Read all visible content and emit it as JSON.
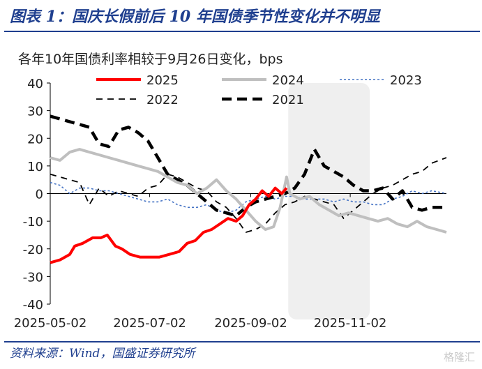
{
  "header": {
    "title": "图表 1：国庆长假前后 10 年国债季节性变化并不明显"
  },
  "footer": {
    "source": "资料来源：Wind，国盛证券研究所",
    "watermark": "格隆汇"
  },
  "colors": {
    "title": "#1f3f8f",
    "2025": "#ff0000",
    "2024": "#bfbfbf",
    "2023": "#4472c4",
    "2022": "#000000",
    "2021": "#000000",
    "highlight": "#efefef"
  },
  "chart_data": {
    "type": "line",
    "title": "各年10年国债利率相较于9月26日变化，bps",
    "ylim": [
      -40,
      40
    ],
    "yticks": [
      "40",
      "30",
      "20",
      "10",
      "0",
      "-10",
      "-20",
      "-30",
      "-40"
    ],
    "xticks": [
      "2025-05-02",
      "2025-07-02",
      "2025-09-02",
      "2025-11-02"
    ],
    "xlim": [
      "2025-05-02",
      "2025-12-31"
    ],
    "shaded_range": [
      "2025-09-25",
      "2025-11-14"
    ],
    "legend_position": "top",
    "series": [
      {
        "name": "2025",
        "style": "solid-thick",
        "points": [
          [
            "2025-05-02",
            -25
          ],
          [
            "2025-05-08",
            -24
          ],
          [
            "2025-05-14",
            -22
          ],
          [
            "2025-05-17",
            -19
          ],
          [
            "2025-05-22",
            -18
          ],
          [
            "2025-05-28",
            -16
          ],
          [
            "2025-06-02",
            -16
          ],
          [
            "2025-06-06",
            -15
          ],
          [
            "2025-06-11",
            -19
          ],
          [
            "2025-06-15",
            -20
          ],
          [
            "2025-06-20",
            -22
          ],
          [
            "2025-06-26",
            -23
          ],
          [
            "2025-07-02",
            -23
          ],
          [
            "2025-07-08",
            -23
          ],
          [
            "2025-07-14",
            -22
          ],
          [
            "2025-07-20",
            -21
          ],
          [
            "2025-07-25",
            -18
          ],
          [
            "2025-07-30",
            -17
          ],
          [
            "2025-08-04",
            -14
          ],
          [
            "2025-08-09",
            -13
          ],
          [
            "2025-08-14",
            -11
          ],
          [
            "2025-08-19",
            -9
          ],
          [
            "2025-08-24",
            -10
          ],
          [
            "2025-08-28",
            -8
          ],
          [
            "2025-09-01",
            -4
          ],
          [
            "2025-09-05",
            -2
          ],
          [
            "2025-09-09",
            1
          ],
          [
            "2025-09-13",
            -1
          ],
          [
            "2025-09-17",
            2
          ],
          [
            "2025-09-21",
            0
          ],
          [
            "2025-09-24",
            2
          ]
        ]
      },
      {
        "name": "2024",
        "style": "solid-thick",
        "points": [
          [
            "2025-05-02",
            13
          ],
          [
            "2025-05-08",
            12
          ],
          [
            "2025-05-14",
            15
          ],
          [
            "2025-05-20",
            16
          ],
          [
            "2025-05-26",
            15
          ],
          [
            "2025-06-01",
            14
          ],
          [
            "2025-06-07",
            13
          ],
          [
            "2025-06-13",
            12
          ],
          [
            "2025-06-19",
            11
          ],
          [
            "2025-06-25",
            10
          ],
          [
            "2025-07-01",
            9
          ],
          [
            "2025-07-07",
            8
          ],
          [
            "2025-07-13",
            6
          ],
          [
            "2025-07-19",
            4
          ],
          [
            "2025-07-25",
            3
          ],
          [
            "2025-07-31",
            0
          ],
          [
            "2025-08-06",
            2
          ],
          [
            "2025-08-12",
            5
          ],
          [
            "2025-08-18",
            1
          ],
          [
            "2025-08-24",
            -2
          ],
          [
            "2025-08-30",
            -6
          ],
          [
            "2025-09-05",
            -10
          ],
          [
            "2025-09-11",
            -13
          ],
          [
            "2025-09-16",
            -12
          ],
          [
            "2025-09-20",
            -5
          ],
          [
            "2025-09-24",
            6
          ],
          [
            "2025-09-26",
            0
          ],
          [
            "2025-10-02",
            -2
          ],
          [
            "2025-10-08",
            -1
          ],
          [
            "2025-10-14",
            -4
          ],
          [
            "2025-10-20",
            -6
          ],
          [
            "2025-10-26",
            -8
          ],
          [
            "2025-11-01",
            -7
          ],
          [
            "2025-11-07",
            -8
          ],
          [
            "2025-11-13",
            -9
          ],
          [
            "2025-11-19",
            -10
          ],
          [
            "2025-11-25",
            -9
          ],
          [
            "2025-12-01",
            -11
          ],
          [
            "2025-12-07",
            -12
          ],
          [
            "2025-12-13",
            -10
          ],
          [
            "2025-12-19",
            -12
          ],
          [
            "2025-12-25",
            -13
          ],
          [
            "2025-12-31",
            -14
          ]
        ]
      },
      {
        "name": "2023",
        "style": "dotted",
        "points": [
          [
            "2025-05-02",
            4
          ],
          [
            "2025-05-08",
            3
          ],
          [
            "2025-05-14",
            0
          ],
          [
            "2025-05-20",
            2
          ],
          [
            "2025-05-26",
            2
          ],
          [
            "2025-06-01",
            1
          ],
          [
            "2025-06-07",
            1
          ],
          [
            "2025-06-13",
            0
          ],
          [
            "2025-06-19",
            -1
          ],
          [
            "2025-06-25",
            -2
          ],
          [
            "2025-07-01",
            -3
          ],
          [
            "2025-07-07",
            -3
          ],
          [
            "2025-07-13",
            -2
          ],
          [
            "2025-07-19",
            -4
          ],
          [
            "2025-07-25",
            -5
          ],
          [
            "2025-07-31",
            -5
          ],
          [
            "2025-08-06",
            -4
          ],
          [
            "2025-08-12",
            -6
          ],
          [
            "2025-08-18",
            -7
          ],
          [
            "2025-08-24",
            -6
          ],
          [
            "2025-08-30",
            -3
          ],
          [
            "2025-09-05",
            -2
          ],
          [
            "2025-09-11",
            -1
          ],
          [
            "2025-09-17",
            -2
          ],
          [
            "2025-09-23",
            -1
          ],
          [
            "2025-09-29",
            -1
          ],
          [
            "2025-10-05",
            -2
          ],
          [
            "2025-10-11",
            -2
          ],
          [
            "2025-10-17",
            -2
          ],
          [
            "2025-10-23",
            -3
          ],
          [
            "2025-10-29",
            -2
          ],
          [
            "2025-11-04",
            -3
          ],
          [
            "2025-11-10",
            -3
          ],
          [
            "2025-11-16",
            -4
          ],
          [
            "2025-11-22",
            -4
          ],
          [
            "2025-11-28",
            -2
          ],
          [
            "2025-12-04",
            -1
          ],
          [
            "2025-12-10",
            1
          ],
          [
            "2025-12-16",
            0
          ],
          [
            "2025-12-22",
            1
          ],
          [
            "2025-12-31",
            0
          ]
        ]
      },
      {
        "name": "2022",
        "style": "dashed",
        "points": [
          [
            "2025-05-02",
            7
          ],
          [
            "2025-05-08",
            6
          ],
          [
            "2025-05-14",
            5
          ],
          [
            "2025-05-20",
            4
          ],
          [
            "2025-05-26",
            -4
          ],
          [
            "2025-06-01",
            2
          ],
          [
            "2025-06-07",
            -1
          ],
          [
            "2025-06-13",
            1
          ],
          [
            "2025-06-19",
            0
          ],
          [
            "2025-06-25",
            -1
          ],
          [
            "2025-07-01",
            2
          ],
          [
            "2025-07-07",
            3
          ],
          [
            "2025-07-13",
            7
          ],
          [
            "2025-07-19",
            6
          ],
          [
            "2025-07-25",
            4
          ],
          [
            "2025-07-31",
            2
          ],
          [
            "2025-08-06",
            1
          ],
          [
            "2025-08-12",
            -3
          ],
          [
            "2025-08-18",
            -5
          ],
          [
            "2025-08-24",
            -9
          ],
          [
            "2025-08-30",
            -14
          ],
          [
            "2025-09-05",
            -13
          ],
          [
            "2025-09-11",
            -11
          ],
          [
            "2025-09-17",
            -7
          ],
          [
            "2025-09-23",
            -4
          ],
          [
            "2025-09-29",
            -3
          ],
          [
            "2025-10-05",
            -1
          ],
          [
            "2025-10-11",
            -2
          ],
          [
            "2025-10-17",
            -3
          ],
          [
            "2025-10-23",
            -4
          ],
          [
            "2025-10-29",
            -9
          ],
          [
            "2025-11-04",
            -6
          ],
          [
            "2025-11-10",
            -3
          ],
          [
            "2025-11-16",
            0
          ],
          [
            "2025-11-22",
            2
          ],
          [
            "2025-11-28",
            3
          ],
          [
            "2025-12-04",
            5
          ],
          [
            "2025-12-10",
            7
          ],
          [
            "2025-12-16",
            8
          ],
          [
            "2025-12-22",
            11
          ],
          [
            "2025-12-31",
            13
          ]
        ]
      },
      {
        "name": "2021",
        "style": "dashed-thick",
        "points": [
          [
            "2025-05-02",
            28
          ],
          [
            "2025-05-08",
            27
          ],
          [
            "2025-05-14",
            26
          ],
          [
            "2025-05-20",
            25
          ],
          [
            "2025-05-26",
            24
          ],
          [
            "2025-06-01",
            18
          ],
          [
            "2025-06-07",
            17
          ],
          [
            "2025-06-13",
            23
          ],
          [
            "2025-06-19",
            24
          ],
          [
            "2025-06-25",
            22
          ],
          [
            "2025-07-01",
            19
          ],
          [
            "2025-07-07",
            13
          ],
          [
            "2025-07-13",
            7
          ],
          [
            "2025-07-19",
            5
          ],
          [
            "2025-07-25",
            3
          ],
          [
            "2025-07-31",
            0
          ],
          [
            "2025-08-06",
            -3
          ],
          [
            "2025-08-12",
            -6
          ],
          [
            "2025-08-18",
            -7
          ],
          [
            "2025-08-24",
            -8
          ],
          [
            "2025-08-30",
            -5
          ],
          [
            "2025-09-05",
            -3
          ],
          [
            "2025-09-11",
            -2
          ],
          [
            "2025-09-17",
            -1
          ],
          [
            "2025-09-23",
            0
          ],
          [
            "2025-09-29",
            2
          ],
          [
            "2025-10-05",
            7
          ],
          [
            "2025-10-11",
            16
          ],
          [
            "2025-10-17",
            10
          ],
          [
            "2025-10-23",
            8
          ],
          [
            "2025-10-29",
            6
          ],
          [
            "2025-11-04",
            3
          ],
          [
            "2025-11-10",
            1
          ],
          [
            "2025-11-16",
            1
          ],
          [
            "2025-11-22",
            2
          ],
          [
            "2025-11-28",
            -2
          ],
          [
            "2025-12-04",
            1
          ],
          [
            "2025-12-10",
            -5
          ],
          [
            "2025-12-16",
            -6
          ],
          [
            "2025-12-22",
            -5
          ],
          [
            "2025-12-31",
            -5
          ]
        ]
      }
    ]
  }
}
